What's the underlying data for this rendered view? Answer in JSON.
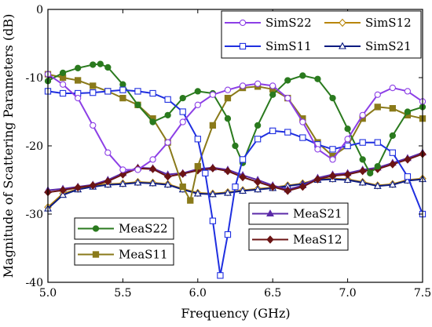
{
  "chart_data": {
    "type": "line",
    "title": "",
    "xlabel": "Frequency (GHz)",
    "ylabel": "Magnitude of Scattering Parameters (dB)",
    "xlim": [
      5.0,
      7.5
    ],
    "ylim": [
      -40,
      0
    ],
    "xticks": [
      "5.0",
      "5.5",
      "6.0",
      "6.5",
      "7.0",
      "7.5"
    ],
    "yticks": [
      "0",
      "-10",
      "-20",
      "-30",
      "-40"
    ],
    "xtick_values": [
      5.0,
      5.5,
      6.0,
      6.5,
      7.0,
      7.5
    ],
    "ytick_values": [
      0,
      -10,
      -20,
      -30,
      -40
    ],
    "grid": false,
    "series": [
      {
        "name": "SimS22",
        "color": "#8c3fe6",
        "marker": "circle-open",
        "x": [
          5.0,
          5.1,
          5.2,
          5.3,
          5.4,
          5.5,
          5.6,
          5.7,
          5.8,
          5.9,
          6.0,
          6.1,
          6.2,
          6.3,
          6.4,
          6.5,
          6.6,
          6.7,
          6.8,
          6.9,
          7.0,
          7.1,
          7.2,
          7.3,
          7.4,
          7.5
        ],
        "y": [
          -9.5,
          -11,
          -13,
          -17,
          -21,
          -23.5,
          -23.5,
          -22,
          -19.5,
          -16.5,
          -14,
          -12.5,
          -11.8,
          -11.2,
          -10.9,
          -11.2,
          -13,
          -16.5,
          -20.5,
          -22,
          -19,
          -15.5,
          -12.5,
          -11.5,
          -12,
          -13.5
        ]
      },
      {
        "name": "SimS12",
        "color": "#b8860b",
        "marker": "diamond-open",
        "x": [
          5.0,
          5.1,
          5.2,
          5.3,
          5.4,
          5.5,
          5.6,
          5.7,
          5.8,
          5.9,
          6.0,
          6.1,
          6.2,
          6.3,
          6.4,
          6.5,
          6.6,
          6.7,
          6.8,
          6.9,
          7.0,
          7.1,
          7.2,
          7.3,
          7.4,
          7.5
        ],
        "y": [
          -29,
          -27,
          -26.3,
          -25.8,
          -25.6,
          -25.5,
          -25.3,
          -25.4,
          -25.6,
          -26.3,
          -26.9,
          -27,
          -26.8,
          -26.5,
          -26.3,
          -26.1,
          -25.8,
          -25.5,
          -24.9,
          -24.8,
          -24.9,
          -25.3,
          -25.8,
          -25.6,
          -25,
          -24.8
        ]
      },
      {
        "name": "SimS11",
        "color": "#1f2fe0",
        "marker": "square-open",
        "x": [
          5.0,
          5.1,
          5.2,
          5.3,
          5.4,
          5.5,
          5.6,
          5.7,
          5.8,
          5.9,
          6.0,
          6.05,
          6.1,
          6.15,
          6.2,
          6.25,
          6.3,
          6.4,
          6.5,
          6.6,
          6.7,
          6.8,
          6.9,
          7.0,
          7.1,
          7.2,
          7.3,
          7.4,
          7.5
        ],
        "y": [
          -12,
          -12.3,
          -12.3,
          -12.2,
          -12,
          -11.8,
          -12,
          -12.3,
          -13.2,
          -15,
          -19,
          -24,
          -31,
          -39,
          -33,
          -26,
          -22,
          -19,
          -17.8,
          -18,
          -18.8,
          -19.8,
          -20.5,
          -20,
          -19.5,
          -19.5,
          -21,
          -24.5,
          -30
        ]
      },
      {
        "name": "SimS21",
        "color": "#0b1a80",
        "marker": "triangle-open",
        "x": [
          5.0,
          5.1,
          5.2,
          5.3,
          5.4,
          5.5,
          5.6,
          5.7,
          5.8,
          5.9,
          6.0,
          6.1,
          6.2,
          6.3,
          6.4,
          6.5,
          6.6,
          6.7,
          6.8,
          6.9,
          7.0,
          7.1,
          7.2,
          7.3,
          7.4,
          7.5
        ],
        "y": [
          -29.2,
          -27.2,
          -26.4,
          -26,
          -25.7,
          -25.6,
          -25.4,
          -25.5,
          -25.7,
          -26.4,
          -27,
          -27.1,
          -26.9,
          -26.6,
          -26.4,
          -26.2,
          -25.9,
          -25.6,
          -25,
          -24.9,
          -25,
          -25.4,
          -25.9,
          -25.7,
          -25.1,
          -24.9
        ]
      },
      {
        "name": "MeaS22",
        "color": "#2a7a1e",
        "marker": "circle-filled",
        "x": [
          5.0,
          5.1,
          5.2,
          5.3,
          5.35,
          5.4,
          5.5,
          5.6,
          5.7,
          5.8,
          5.9,
          6.0,
          6.1,
          6.2,
          6.25,
          6.3,
          6.4,
          6.5,
          6.6,
          6.7,
          6.8,
          6.9,
          7.0,
          7.1,
          7.15,
          7.2,
          7.3,
          7.4,
          7.5
        ],
        "y": [
          -10.5,
          -9.3,
          -8.6,
          -8.1,
          -8,
          -8.5,
          -11,
          -14,
          -16.5,
          -15.5,
          -13,
          -12,
          -12.3,
          -16,
          -20,
          -22.5,
          -17,
          -12.5,
          -10.4,
          -9.7,
          -10.2,
          -13,
          -17.5,
          -22,
          -24,
          -23,
          -18.5,
          -15,
          -14.3
        ]
      },
      {
        "name": "MeaS11",
        "color": "#8a7a1a",
        "marker": "square-filled",
        "x": [
          5.0,
          5.1,
          5.2,
          5.3,
          5.4,
          5.5,
          5.6,
          5.7,
          5.8,
          5.9,
          5.95,
          6.0,
          6.1,
          6.2,
          6.3,
          6.4,
          6.5,
          6.6,
          6.7,
          6.8,
          6.9,
          7.0,
          7.1,
          7.2,
          7.3,
          7.4,
          7.5
        ],
        "y": [
          -9.5,
          -10,
          -10.4,
          -11.2,
          -12,
          -13,
          -14,
          -16,
          -19.5,
          -26,
          -28,
          -23,
          -17,
          -13,
          -11.5,
          -11.3,
          -11.7,
          -13,
          -16,
          -19.5,
          -21.5,
          -20,
          -16,
          -14.3,
          -14.5,
          -15.5,
          -16
        ]
      },
      {
        "name": "MeaS21",
        "color": "#5b2aa8",
        "marker": "triangle-filled",
        "x": [
          5.0,
          5.1,
          5.2,
          5.3,
          5.4,
          5.5,
          5.6,
          5.7,
          5.8,
          5.9,
          6.0,
          6.1,
          6.2,
          6.3,
          6.4,
          6.5,
          6.6,
          6.7,
          6.8,
          6.9,
          7.0,
          7.1,
          7.2,
          7.3,
          7.4,
          7.5
        ],
        "y": [
          -26.5,
          -26.3,
          -26,
          -25.7,
          -25,
          -24,
          -23.2,
          -23.3,
          -24.2,
          -24,
          -23.4,
          -23.2,
          -23.5,
          -24.3,
          -25,
          -25.8,
          -26.4,
          -25.8,
          -24.7,
          -24.2,
          -24,
          -23.5,
          -23.2,
          -22.5,
          -21.8,
          -21
        ]
      },
      {
        "name": "MeaS12",
        "color": "#6b1414",
        "marker": "diamond-filled",
        "x": [
          5.0,
          5.1,
          5.2,
          5.3,
          5.4,
          5.5,
          5.6,
          5.7,
          5.8,
          5.9,
          6.0,
          6.1,
          6.2,
          6.3,
          6.4,
          6.5,
          6.6,
          6.7,
          6.8,
          6.9,
          7.0,
          7.1,
          7.2,
          7.3,
          7.4,
          7.5
        ],
        "y": [
          -26.8,
          -26.5,
          -26.1,
          -25.8,
          -25.2,
          -24.2,
          -23.3,
          -23.4,
          -24.5,
          -24.1,
          -23.6,
          -23.3,
          -23.7,
          -24.6,
          -25.3,
          -26,
          -26.6,
          -26,
          -24.9,
          -24.4,
          -24.2,
          -23.7,
          -23.4,
          -22.7,
          -22,
          -21.2
        ]
      }
    ],
    "legends": [
      {
        "entries": [
          "SimS22",
          "SimS12",
          "SimS11",
          "SimS21"
        ],
        "placement": "top-right"
      },
      {
        "entries": [
          "MeaS22"
        ],
        "placement": "bottom-left"
      },
      {
        "entries": [
          "MeaS11"
        ],
        "placement": "bottom-left"
      },
      {
        "entries": [
          "MeaS21"
        ],
        "placement": "bottom-center"
      },
      {
        "entries": [
          "MeaS12"
        ],
        "placement": "bottom-center"
      }
    ]
  }
}
